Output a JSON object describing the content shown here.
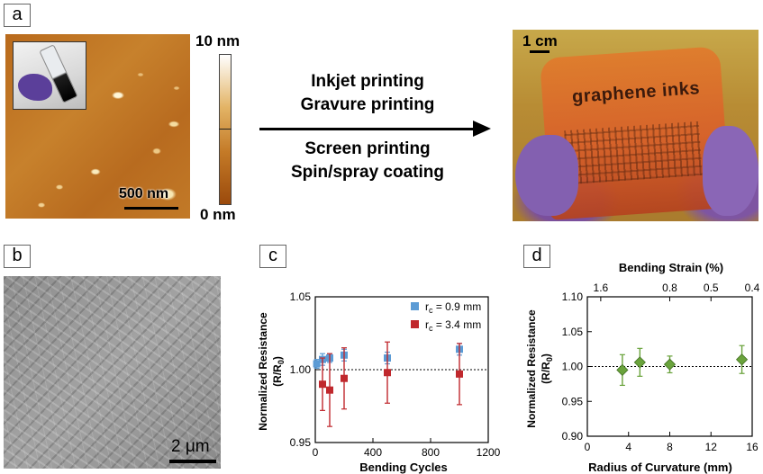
{
  "panels": {
    "a": "a",
    "b": "b",
    "c": "c",
    "d": "d"
  },
  "panel_a": {
    "afm_scale": "500 nm",
    "colorbar_top": "10 nm",
    "colorbar_bottom": "0 nm",
    "methods_top": [
      "Inkjet printing",
      "Gravure printing"
    ],
    "methods_bottom": [
      "Screen printing",
      "Spin/spray coating"
    ],
    "photo_scale": "1 cm",
    "film_text": "graphene inks"
  },
  "panel_b": {
    "sem_scale": "2 μm"
  },
  "chart_data": [
    {
      "type": "scatter",
      "panel": "c",
      "xlabel": "Bending Cycles",
      "ylabel_line1": "Normalized Resistance",
      "ylabel_line2": "(R/R",
      "ylabel_sub": "0",
      "ylabel_end": ")",
      "xlim": [
        0,
        1200
      ],
      "ylim": [
        0.95,
        1.05
      ],
      "xticks": [
        "0",
        "400",
        "800",
        "1200"
      ],
      "yticks": [
        "0.95",
        "1.00",
        "1.05"
      ],
      "reference_line": 1.0,
      "legend_position": "top-right",
      "series": [
        {
          "name": "r_c = 0.9 mm",
          "label_main": "r",
          "label_sub": "c",
          "label_rest": " = 0.9 mm",
          "color": "#5b9bd5",
          "x": [
            10,
            50,
            100,
            200,
            500,
            1000
          ],
          "y": [
            1.004,
            1.007,
            1.008,
            1.01,
            1.008,
            1.014
          ],
          "err": [
            0.003,
            0.004,
            0.003,
            0.004,
            0.004,
            0.004
          ]
        },
        {
          "name": "r_c = 3.4 mm",
          "label_main": "r",
          "label_sub": "c",
          "label_rest": " = 3.4 mm",
          "color": "#c0282d",
          "x": [
            50,
            100,
            200,
            500,
            1000
          ],
          "y": [
            0.99,
            0.986,
            0.994,
            0.998,
            0.997
          ],
          "err": [
            0.018,
            0.025,
            0.021,
            0.021,
            0.021
          ]
        }
      ]
    },
    {
      "type": "scatter",
      "panel": "d",
      "xlabel": "Radius of Curvature (mm)",
      "x2label": "Bending Strain (%)",
      "ylabel_line1": "Normalized Resistance",
      "ylabel_line2": "(R/R",
      "ylabel_sub": "0",
      "ylabel_end": ")",
      "xlim": [
        0,
        16
      ],
      "ylim": [
        0.9,
        1.1
      ],
      "xticks": [
        "0",
        "4",
        "8",
        "12",
        "16"
      ],
      "x2ticks": [
        {
          "label": "1.6",
          "x": 1.3
        },
        {
          "label": "0.8",
          "x": 8.0
        },
        {
          "label": "0.5",
          "x": 12.0
        },
        {
          "label": "0.4",
          "x": 16.0
        }
      ],
      "yticks": [
        "0.90",
        "0.95",
        "1.00",
        "1.05",
        "1.10"
      ],
      "reference_line": 1.0,
      "series": [
        {
          "color": "#6aa33c",
          "x": [
            3.4,
            5.1,
            8.0,
            15.0
          ],
          "y": [
            0.995,
            1.006,
            1.003,
            1.01
          ],
          "err": [
            0.022,
            0.02,
            0.012,
            0.02
          ]
        }
      ]
    }
  ]
}
